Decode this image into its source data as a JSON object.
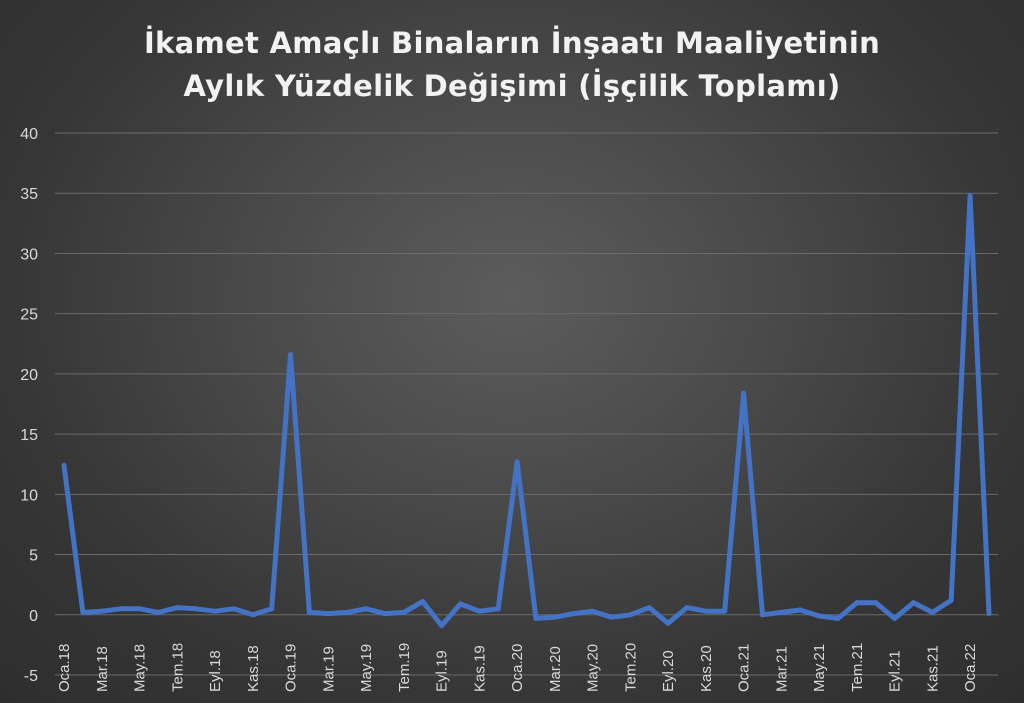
{
  "chart_data": {
    "type": "line",
    "title": [
      "İkamet Amaçlı Binaların İnşaatı Maaliyetinin",
      "Aylık Yüzdelik Değişimi (İşçilik Toplamı)"
    ],
    "xlabel": "",
    "ylabel": "",
    "ylim": [
      -5,
      40
    ],
    "yticks": [
      -5,
      0,
      5,
      10,
      15,
      20,
      25,
      30,
      35,
      40
    ],
    "grid": true,
    "legend": "none",
    "line_color": "#4472c4",
    "x": [
      "Oca.18",
      "Şub.18",
      "Mar.18",
      "Nis.18",
      "May.18",
      "Haz.18",
      "Tem.18",
      "Ağu.18",
      "Eyl.18",
      "Eki.18",
      "Kas.18",
      "Ara.18",
      "Oca.19",
      "Şub.19",
      "Mar.19",
      "Nis.19",
      "May.19",
      "Haz.19",
      "Tem.19",
      "Ağu.19",
      "Eyl.19",
      "Eki.19",
      "Kas.19",
      "Ara.19",
      "Oca.20",
      "Şub.20",
      "Mar.20",
      "Nis.20",
      "May.20",
      "Haz.20",
      "Tem.20",
      "Ağu.20",
      "Eyl.20",
      "Eki.20",
      "Kas.20",
      "Ara.20",
      "Oca.21",
      "Şub.21",
      "Mar.21",
      "Nis.21",
      "May.21",
      "Haz.21",
      "Tem.21",
      "Ağu.21",
      "Eyl.21",
      "Eki.21",
      "Kas.21",
      "Ara.21",
      "Oca.22",
      "Şub.22"
    ],
    "xtick_labels": [
      "Oca.18",
      "Mar.18",
      "May.18",
      "Tem.18",
      "Eyl.18",
      "Kas.18",
      "Oca.19",
      "Mar.19",
      "May.19",
      "Tem.19",
      "Eyl.19",
      "Kas.19",
      "Oca.20",
      "Mar.20",
      "May.20",
      "Tem.20",
      "Eyl.20",
      "Kas.20",
      "Oca.21",
      "Mar.21",
      "May.21",
      "Tem.21",
      "Eyl.21",
      "Kas.21",
      "Oca.22"
    ],
    "series": [
      {
        "values": [
          12.4,
          0.2,
          0.3,
          0.5,
          0.5,
          0.2,
          0.6,
          0.5,
          0.3,
          0.5,
          0.0,
          0.5,
          21.6,
          0.2,
          0.1,
          0.2,
          0.5,
          0.1,
          0.2,
          1.1,
          -0.9,
          0.9,
          0.3,
          0.5,
          12.7,
          -0.3,
          -0.2,
          0.1,
          0.3,
          -0.2,
          0.0,
          0.6,
          -0.7,
          0.6,
          0.3,
          0.3,
          18.4,
          0.0,
          0.2,
          0.4,
          -0.1,
          -0.3,
          1.0,
          1.0,
          -0.3,
          1.0,
          0.2,
          1.2,
          34.8,
          0.1
        ]
      }
    ]
  }
}
